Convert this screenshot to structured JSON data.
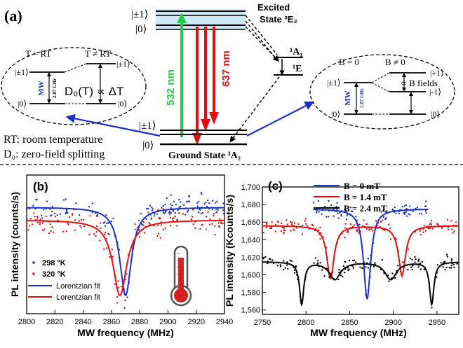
{
  "colors": {
    "green": "#22cc44",
    "red": "#e01010",
    "blue": "#1a2fc8",
    "excited_band": "#cfe8f8",
    "therm_red": "#d42020"
  },
  "panel_a": {
    "label": "(a)",
    "excited_ket_pm1": "|±1⟩",
    "excited_ket_0": "|0⟩",
    "excited_state": "Excited",
    "excited_state2": "State ³E₂",
    "singlet_upper": "¹A₁",
    "singlet_lower": "¹E",
    "pump_label": "532 nm",
    "emission_label": "637 nm",
    "ground_ket_pm1": "|±1⟩",
    "ground_ket_0": "|0⟩",
    "ground_state": "Ground State ³A₂",
    "rt_note": "RT: room temperature",
    "d0_note": "D₀: zero-field splitting",
    "temp_inset": {
      "t_eq": "T = RT",
      "t_neq": "T ≠ RT",
      "ket_pm1_left": "|±1⟩",
      "ket_0_left": "|0⟩",
      "ket_pm1_right": "|±1⟩",
      "ket_0_right": "|0⟩",
      "mw": "MW",
      "freq": "2.87 GHz",
      "formula": "D₀(T) ∝ ΔT"
    },
    "b_inset": {
      "b_eq": "B = 0",
      "b_neq": "B ≠ 0",
      "ket_pm1_left": "|±1⟩",
      "ket_0_left": "|0⟩",
      "ket_p1": "|+1⟩",
      "ket_m1": "|-1⟩",
      "ket_0_right": "|0⟩",
      "mw": "MW",
      "freq": "2.87 GHz",
      "prop": "∝ B fields"
    }
  },
  "chart_data": [
    {
      "id": "b",
      "type": "scatter",
      "label": "(b)",
      "xlabel": "MW frequency (MHz)",
      "ylabel": "PL intensity (counts/s)",
      "xlim": [
        2800,
        2940
      ],
      "xticks": [
        2800,
        2820,
        2840,
        2860,
        2880,
        2900,
        2920,
        2940
      ],
      "legend": [
        "298 °K",
        "320 °K",
        "Lorentzian fit",
        "Lorentzian fit"
      ],
      "series": [
        {
          "name": "298 °K",
          "center": 2870,
          "baseline": 1.0,
          "depth": 0.9,
          "width": 5
        },
        {
          "name": "320 °K",
          "center": 2866,
          "baseline": 0.87,
          "depth": 0.77,
          "width": 6
        }
      ]
    },
    {
      "id": "c",
      "type": "scatter",
      "label": "(c)",
      "xlabel": "MW frequency (MHz)",
      "ylabel": "PL intensity (Kcounts/s)",
      "xlim": [
        2750,
        2975
      ],
      "ylim": [
        1555,
        1700
      ],
      "xticks": [
        2750,
        2800,
        2850,
        2900,
        2950
      ],
      "yticks": [
        "1,560",
        "1,580",
        "1,600",
        "1,620",
        "1,640",
        "1,660",
        "1,680",
        "1,700"
      ],
      "legend": [
        "B = 0 mT",
        "B = 1.4 mT",
        "B = 2.4 mT"
      ],
      "series": [
        {
          "name": "B = 0 mT",
          "baseline": 1675,
          "dips": [
            {
              "center": 2870,
              "depth": 102,
              "width": 5
            }
          ],
          "range": [
            2808,
            2940
          ]
        },
        {
          "name": "B = 1.4 mT",
          "baseline": 1656,
          "dips": [
            {
              "center": 2828,
              "depth": 60,
              "width": 5
            },
            {
              "center": 2910,
              "depth": 56,
              "width": 5
            }
          ],
          "range": [
            2750,
            2975
          ]
        },
        {
          "name": "B = 2.4 mT",
          "baseline": 1615,
          "dips": [
            {
              "center": 2795,
              "depth": 48,
              "width": 3
            },
            {
              "center": 2833,
              "depth": 20,
              "width": 8
            },
            {
              "center": 2897,
              "depth": 20,
              "width": 8
            },
            {
              "center": 2944,
              "depth": 48,
              "width": 3
            }
          ],
          "range": [
            2750,
            2975
          ]
        }
      ]
    }
  ]
}
